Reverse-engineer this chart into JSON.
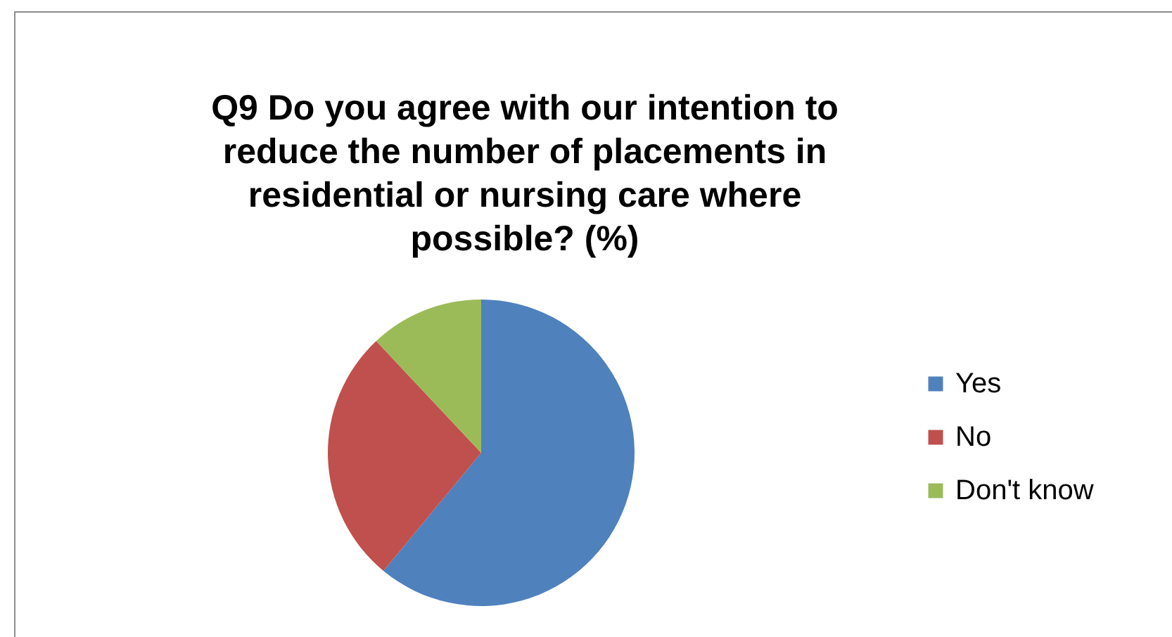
{
  "chart_data": {
    "type": "pie",
    "title": "Q9 Do you agree with our intention to reduce the number of placements in residential or nursing care where possible? (%)",
    "categories": [
      "Yes",
      "No",
      "Don't know"
    ],
    "values": [
      61,
      27,
      12
    ],
    "colors": [
      "#4f81bd",
      "#c0504d",
      "#9bbb59"
    ],
    "legend": "right"
  }
}
